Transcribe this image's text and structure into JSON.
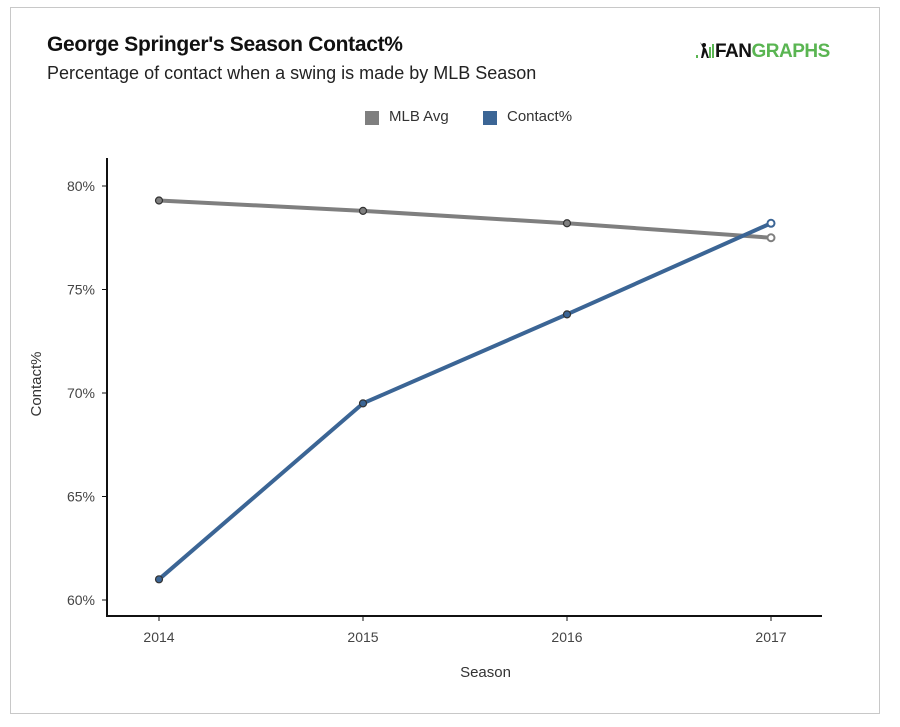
{
  "header": {
    "title": "George Springer's Season Contact%",
    "subtitle": "Percentage of contact when a swing is made by MLB Season"
  },
  "logo": {
    "icon": "fangraphs-batter-icon",
    "text_dark": "FAN",
    "text_green": "GRAPHS",
    "brand_green": "#5ab552"
  },
  "legend": [
    {
      "label": "MLB Avg",
      "color": "#7f7f7f"
    },
    {
      "label": "Contact%",
      "color": "#3b6595"
    }
  ],
  "chart_data": {
    "type": "line",
    "title": "George Springer's Season Contact%",
    "subtitle": "Percentage of contact when a swing is made by MLB Season",
    "xlabel": "Season",
    "ylabel": "Contact%",
    "x": [
      "2014",
      "2015",
      "2016",
      "2017"
    ],
    "ylim": [
      60,
      80
    ],
    "yticks": [
      60,
      65,
      70,
      75,
      80
    ],
    "ytick_labels": [
      "60%",
      "65%",
      "70%",
      "75%",
      "80%"
    ],
    "grid": false,
    "legend_position": "top-center",
    "series": [
      {
        "name": "MLB Avg",
        "color": "#7f7f7f",
        "values": [
          79.3,
          78.8,
          78.2,
          77.5
        ],
        "last_point_hollow": true
      },
      {
        "name": "Contact%",
        "color": "#3b6595",
        "values": [
          61.0,
          69.5,
          73.8,
          78.2
        ],
        "last_point_hollow": true
      }
    ]
  }
}
